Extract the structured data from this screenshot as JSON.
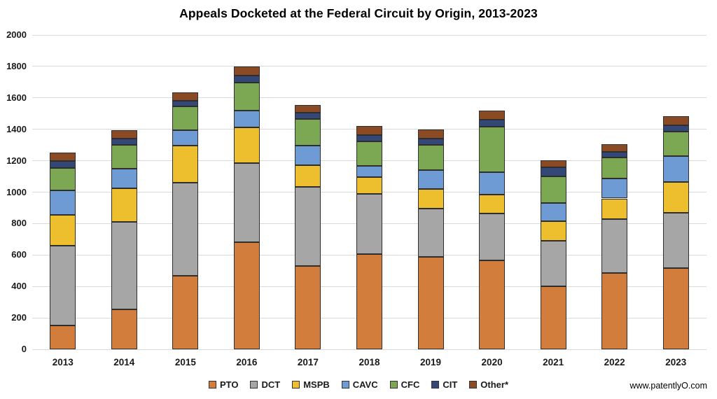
{
  "page": {
    "watermark": "www.patentlyO.com"
  },
  "chart_data": {
    "type": "bar",
    "stacked": true,
    "title": "Appeals Docketed at the Federal Circuit by Origin, 2013-2023",
    "categories": [
      "2013",
      "2014",
      "2015",
      "2016",
      "2017",
      "2018",
      "2019",
      "2020",
      "2021",
      "2022",
      "2023"
    ],
    "series": [
      {
        "name": "PTO",
        "color": "#D27D3C",
        "values": [
          150,
          255,
          470,
          680,
          530,
          605,
          590,
          565,
          400,
          485,
          515
        ]
      },
      {
        "name": "DCT",
        "color": "#A6A6A6",
        "values": [
          510,
          555,
          590,
          505,
          505,
          385,
          305,
          300,
          290,
          345,
          355
        ]
      },
      {
        "name": "MSPB",
        "color": "#EDBE2D",
        "values": [
          195,
          215,
          235,
          225,
          135,
          105,
          125,
          120,
          125,
          130,
          195
        ]
      },
      {
        "name": "CAVC",
        "color": "#6F9BD5",
        "values": [
          155,
          125,
          100,
          110,
          125,
          70,
          120,
          140,
          115,
          125,
          165
        ]
      },
      {
        "name": "CFC",
        "color": "#7CA853",
        "values": [
          145,
          150,
          150,
          175,
          170,
          160,
          160,
          290,
          170,
          135,
          155
        ]
      },
      {
        "name": "CIT",
        "color": "#334876",
        "values": [
          45,
          40,
          35,
          45,
          40,
          40,
          40,
          45,
          60,
          35,
          40
        ]
      },
      {
        "name": "Other*",
        "color": "#8A4A23",
        "values": [
          50,
          55,
          55,
          60,
          50,
          55,
          60,
          60,
          45,
          50,
          60
        ]
      }
    ],
    "totals": [
      1250,
      1395,
      1635,
      1800,
      1555,
      1420,
      1400,
      1520,
      1205,
      1305,
      1485
    ],
    "ylim": [
      0,
      2000
    ],
    "ytick_step": 200,
    "grid": "horizontal",
    "legend_position": "bottom"
  }
}
